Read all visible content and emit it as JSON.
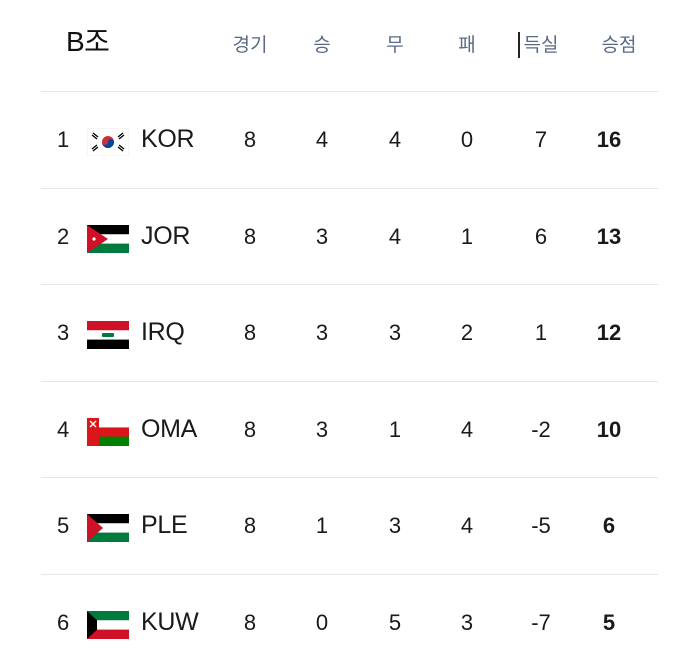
{
  "group": {
    "title": "B조"
  },
  "headers": {
    "played": "경기",
    "won": "승",
    "drawn": "무",
    "lost": "패",
    "goal_diff": "득실",
    "points": "승점"
  },
  "rows": [
    {
      "rank": "1",
      "team": "KOR",
      "flag": "south-korea-flag-icon",
      "played": "8",
      "won": "4",
      "drawn": "4",
      "lost": "0",
      "gd": "7",
      "pts": "16"
    },
    {
      "rank": "2",
      "team": "JOR",
      "flag": "jordan-flag-icon",
      "played": "8",
      "won": "3",
      "drawn": "4",
      "lost": "1",
      "gd": "6",
      "pts": "13"
    },
    {
      "rank": "3",
      "team": "IRQ",
      "flag": "iraq-flag-icon",
      "played": "8",
      "won": "3",
      "drawn": "3",
      "lost": "2",
      "gd": "1",
      "pts": "12"
    },
    {
      "rank": "4",
      "team": "OMA",
      "flag": "oman-flag-icon",
      "played": "8",
      "won": "3",
      "drawn": "1",
      "lost": "4",
      "gd": "-2",
      "pts": "10"
    },
    {
      "rank": "5",
      "team": "PLE",
      "flag": "palestine-flag-icon",
      "played": "8",
      "won": "1",
      "drawn": "3",
      "lost": "4",
      "gd": "-5",
      "pts": "6"
    },
    {
      "rank": "6",
      "team": "KUW",
      "flag": "kuwait-flag-icon",
      "played": "8",
      "won": "0",
      "drawn": "5",
      "lost": "3",
      "gd": "-7",
      "pts": "5"
    }
  ],
  "colors": {
    "header_text": "#5a6a84",
    "divider": "#e6e6e6"
  }
}
